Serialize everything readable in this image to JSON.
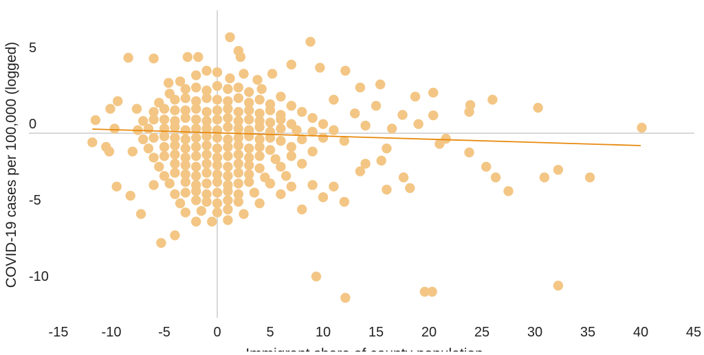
{
  "chart_data": {
    "type": "scatter",
    "title": "",
    "xlabel": "Immigrant share of county population",
    "ylabel": "COVID-19 cases per 100,000 (logged)",
    "xlim": [
      -15,
      45
    ],
    "ylim": [
      -12.5,
      8
    ],
    "xticks": [
      -15,
      -10,
      -5,
      0,
      5,
      10,
      15,
      20,
      25,
      30,
      35,
      40,
      45
    ],
    "yticks": [
      5,
      0,
      -5,
      -10
    ],
    "grid": false,
    "zero_lines": true,
    "point_color": "#F3C685",
    "trend_color": "#E8890C",
    "trend_line": {
      "x": [
        -11.8,
        40
      ],
      "y": [
        0.27,
        -0.81
      ]
    },
    "points": [
      [
        -3.5,
        3.4
      ],
      [
        -2,
        3.8
      ],
      [
        -1,
        4.1
      ],
      [
        0,
        4.0
      ],
      [
        1.2,
        3.6
      ],
      [
        2.5,
        3.9
      ],
      [
        3.8,
        3.5
      ],
      [
        5.2,
        3.9
      ],
      [
        -4.5,
        2.6
      ],
      [
        -3,
        2.9
      ],
      [
        -2,
        3.0
      ],
      [
        -1,
        2.8
      ],
      [
        0,
        3.1
      ],
      [
        1,
        2.9
      ],
      [
        2,
        3.0
      ],
      [
        3,
        2.7
      ],
      [
        4.2,
        2.9
      ],
      [
        6,
        2.4
      ],
      [
        -5.5,
        2.0
      ],
      [
        -4,
        2.2
      ],
      [
        -3,
        2.3
      ],
      [
        -2,
        2.1
      ],
      [
        -1,
        2.3
      ],
      [
        0,
        2.2
      ],
      [
        1,
        2.1
      ],
      [
        2,
        2.3
      ],
      [
        3,
        2.0
      ],
      [
        4,
        2.2
      ],
      [
        5,
        1.9
      ],
      [
        7,
        1.8
      ],
      [
        -6,
        1.4
      ],
      [
        -5,
        1.6
      ],
      [
        -4,
        1.5
      ],
      [
        -3,
        1.5
      ],
      [
        -2,
        1.6
      ],
      [
        -1,
        1.4
      ],
      [
        0,
        1.5
      ],
      [
        1,
        1.6
      ],
      [
        2,
        1.4
      ],
      [
        3,
        1.5
      ],
      [
        4,
        1.3
      ],
      [
        5,
        1.5
      ],
      [
        6,
        1.2
      ],
      [
        8,
        1.4
      ],
      [
        -7,
        0.8
      ],
      [
        -6,
        0.9
      ],
      [
        -5,
        0.9
      ],
      [
        -4,
        0.8
      ],
      [
        -3,
        1.0
      ],
      [
        -2,
        0.9
      ],
      [
        -1,
        0.8
      ],
      [
        0,
        0.9
      ],
      [
        1,
        1.0
      ],
      [
        2,
        0.8
      ],
      [
        3,
        0.9
      ],
      [
        4,
        0.8
      ],
      [
        5,
        0.7
      ],
      [
        6,
        0.9
      ],
      [
        7,
        0.6
      ],
      [
        9,
        1.0
      ],
      [
        10,
        0.6
      ],
      [
        -7.5,
        0.2
      ],
      [
        -6.5,
        0.3
      ],
      [
        -5,
        0.3
      ],
      [
        -4,
        0.4
      ],
      [
        -3,
        0.2
      ],
      [
        -2,
        0.3
      ],
      [
        -1,
        0.3
      ],
      [
        0,
        0.2
      ],
      [
        1,
        0.4
      ],
      [
        2,
        0.3
      ],
      [
        3,
        0.2
      ],
      [
        4,
        0.4
      ],
      [
        5,
        0.1
      ],
      [
        6,
        0.3
      ],
      [
        7.5,
        0.2
      ],
      [
        9,
        0.1
      ],
      [
        11,
        0.2
      ],
      [
        -7,
        -0.4
      ],
      [
        -6,
        -0.3
      ],
      [
        -5,
        -0.2
      ],
      [
        -4,
        -0.3
      ],
      [
        -3,
        -0.4
      ],
      [
        -2,
        -0.3
      ],
      [
        -1,
        -0.2
      ],
      [
        0,
        -0.3
      ],
      [
        1,
        -0.4
      ],
      [
        2,
        -0.3
      ],
      [
        3,
        -0.2
      ],
      [
        4,
        -0.4
      ],
      [
        5,
        -0.3
      ],
      [
        6,
        -0.5
      ],
      [
        8,
        -0.4
      ],
      [
        10,
        -0.3
      ],
      [
        12,
        -0.5
      ],
      [
        -6.5,
        -1.0
      ],
      [
        -5,
        -0.9
      ],
      [
        -4,
        -0.8
      ],
      [
        -3,
        -1.0
      ],
      [
        -2,
        -0.9
      ],
      [
        -1,
        -0.8
      ],
      [
        0,
        -1.0
      ],
      [
        1,
        -0.9
      ],
      [
        2,
        -0.8
      ],
      [
        3,
        -1.0
      ],
      [
        4,
        -0.9
      ],
      [
        5,
        -1.1
      ],
      [
        7,
        -0.9
      ],
      [
        9,
        -1.2
      ],
      [
        -6,
        -1.6
      ],
      [
        -5,
        -1.5
      ],
      [
        -4,
        -1.4
      ],
      [
        -3,
        -1.6
      ],
      [
        -2,
        -1.5
      ],
      [
        -1,
        -1.4
      ],
      [
        0,
        -1.6
      ],
      [
        1,
        -1.5
      ],
      [
        2,
        -1.4
      ],
      [
        3,
        -1.6
      ],
      [
        4,
        -1.5
      ],
      [
        5.5,
        -1.7
      ],
      [
        7,
        -1.5
      ],
      [
        -5.5,
        -2.2
      ],
      [
        -4,
        -2.0
      ],
      [
        -3,
        -2.1
      ],
      [
        -2,
        -2.2
      ],
      [
        -1,
        -2.0
      ],
      [
        0,
        -2.1
      ],
      [
        1,
        -2.2
      ],
      [
        2,
        -2.0
      ],
      [
        3,
        -2.1
      ],
      [
        4,
        -2.3
      ],
      [
        6,
        -2.2
      ],
      [
        8,
        -2.0
      ],
      [
        -5,
        -2.8
      ],
      [
        -4,
        -2.6
      ],
      [
        -3,
        -2.7
      ],
      [
        -2,
        -2.8
      ],
      [
        -1,
        -2.6
      ],
      [
        0,
        -2.7
      ],
      [
        1,
        -2.8
      ],
      [
        2,
        -2.6
      ],
      [
        3,
        -2.7
      ],
      [
        4.5,
        -2.9
      ],
      [
        6.5,
        -2.8
      ],
      [
        -6,
        -3.4
      ],
      [
        -4.5,
        -3.3
      ],
      [
        -3,
        -3.2
      ],
      [
        -2,
        -3.4
      ],
      [
        -1,
        -3.3
      ],
      [
        0,
        -3.2
      ],
      [
        1,
        -3.4
      ],
      [
        2,
        -3.3
      ],
      [
        3,
        -3.2
      ],
      [
        5,
        -3.3
      ],
      [
        7,
        -3.5
      ],
      [
        9,
        -3.4
      ],
      [
        -4,
        -4.0
      ],
      [
        -3,
        -3.9
      ],
      [
        -2,
        -3.8
      ],
      [
        -1,
        -4.0
      ],
      [
        0,
        -3.9
      ],
      [
        1,
        -3.8
      ],
      [
        2,
        -4.0
      ],
      [
        3.5,
        -3.9
      ],
      [
        6,
        -4.0
      ],
      [
        -3.5,
        -4.6
      ],
      [
        -2,
        -4.4
      ],
      [
        -1,
        -4.5
      ],
      [
        0,
        -4.6
      ],
      [
        1,
        -4.4
      ],
      [
        2,
        -4.5
      ],
      [
        4,
        -4.6
      ],
      [
        -3,
        -5.2
      ],
      [
        -1.5,
        -5.1
      ],
      [
        0,
        -5.2
      ],
      [
        1,
        -5.0
      ],
      [
        2.5,
        -5.3
      ],
      [
        -2,
        -5.8
      ],
      [
        -0.5,
        -5.8
      ],
      [
        1,
        -5.7
      ],
      [
        40.1,
        0.36
      ],
      [
        35.2,
        -2.9
      ],
      [
        32.2,
        -2.4
      ],
      [
        32.2,
        -10.0
      ],
      [
        30.9,
        -2.9
      ],
      [
        30.3,
        1.67
      ],
      [
        27.5,
        -3.8
      ],
      [
        26.3,
        -2.9
      ],
      [
        26.0,
        2.2
      ],
      [
        25.4,
        -2.2
      ],
      [
        23.9,
        1.85
      ],
      [
        23.8,
        1.4
      ],
      [
        23.8,
        -1.26
      ],
      [
        20.3,
        -10.4
      ],
      [
        19.6,
        -10.4
      ],
      [
        12.1,
        -10.8
      ],
      [
        9.35,
        -9.4
      ],
      [
        8.8,
        6.0
      ],
      [
        1.2,
        6.3
      ],
      [
        -8.4,
        4.95
      ],
      [
        -5.3,
        -7.2
      ],
      [
        -4.0,
        -6.7
      ],
      [
        18.2,
        -3.6
      ],
      [
        17.6,
        -2.9
      ],
      [
        16.0,
        -3.7
      ],
      [
        20.4,
        2.66
      ],
      [
        18.7,
        2.4
      ],
      [
        20.4,
        1.17
      ],
      [
        21.6,
        -0.36
      ],
      [
        21.0,
        -0.7
      ],
      [
        13.5,
        3.0
      ],
      [
        15.4,
        3.2
      ],
      [
        12.1,
        4.1
      ],
      [
        9.7,
        4.3
      ],
      [
        7.0,
        4.5
      ],
      [
        -11.8,
        -0.6
      ],
      [
        -11.5,
        0.86
      ],
      [
        -10.1,
        1.6
      ],
      [
        -9.5,
        -3.5
      ],
      [
        -9.4,
        2.1
      ],
      [
        -10.5,
        -0.9
      ],
      [
        -10.2,
        -1.2
      ],
      [
        -9.7,
        0.3
      ],
      [
        -8.0,
        -1.2
      ],
      [
        -8.2,
        -4.1
      ],
      [
        -7.2,
        -5.3
      ],
      [
        -7.6,
        1.6
      ],
      [
        -6.0,
        4.9
      ],
      [
        -4.6,
        3.3
      ],
      [
        -2.8,
        5.0
      ],
      [
        -1.8,
        5.0
      ],
      [
        2.0,
        5.4
      ],
      [
        2.2,
        5.0
      ],
      [
        11.0,
        2.2
      ],
      [
        13.0,
        1.3
      ],
      [
        14.0,
        0.5
      ],
      [
        15.0,
        1.8
      ],
      [
        16.0,
        -1.0
      ],
      [
        16.5,
        0.3
      ],
      [
        17.5,
        1.2
      ],
      [
        19.0,
        0.6
      ],
      [
        14.0,
        -2.0
      ],
      [
        11.0,
        -3.5
      ],
      [
        10.0,
        -4.2
      ],
      [
        8.0,
        -5.0
      ],
      [
        12.0,
        -4.5
      ],
      [
        15.5,
        -1.8
      ],
      [
        13.5,
        -2.5
      ]
    ]
  }
}
